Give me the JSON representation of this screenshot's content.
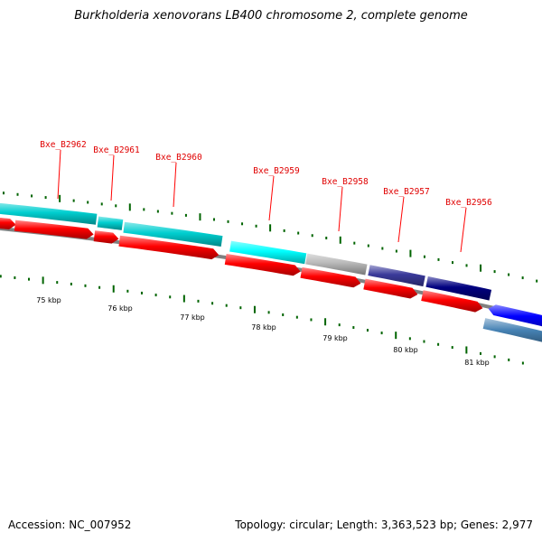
{
  "title": "Burkholderia xenovorans LB400 chromosome 2, complete genome",
  "footer": {
    "accession_label": "Accession:",
    "accession": "NC_007952",
    "topology_label": "Topology:",
    "topology": "circular",
    "length_label": "Length:",
    "length": "3,363,523 bp",
    "genes_label": "Genes:",
    "genes": "2,977"
  },
  "map": {
    "colors": {
      "cyan": "#00cfd0",
      "cyan_bright": "#00ffff",
      "grey": "#b8b8b8",
      "navy_purple": "#3a3a9a",
      "navy": "#000080",
      "red": "#ff0000",
      "blue": "#0000ff",
      "steel_blue": "#4682b4",
      "backbone": "#808080",
      "tick": "#006400"
    },
    "scale_labels": [
      "75 kbp",
      "76 kbp",
      "77 kbp",
      "78 kbp",
      "79 kbp",
      "80 kbp",
      "81 kbp"
    ],
    "genes": [
      {
        "name": "Bxe_B2962"
      },
      {
        "name": "Bxe_B2961"
      },
      {
        "name": "Bxe_B2960"
      },
      {
        "name": "Bxe_B2959"
      },
      {
        "name": "Bxe_B2958"
      },
      {
        "name": "Bxe_B2957"
      },
      {
        "name": "Bxe_B2956"
      }
    ]
  }
}
